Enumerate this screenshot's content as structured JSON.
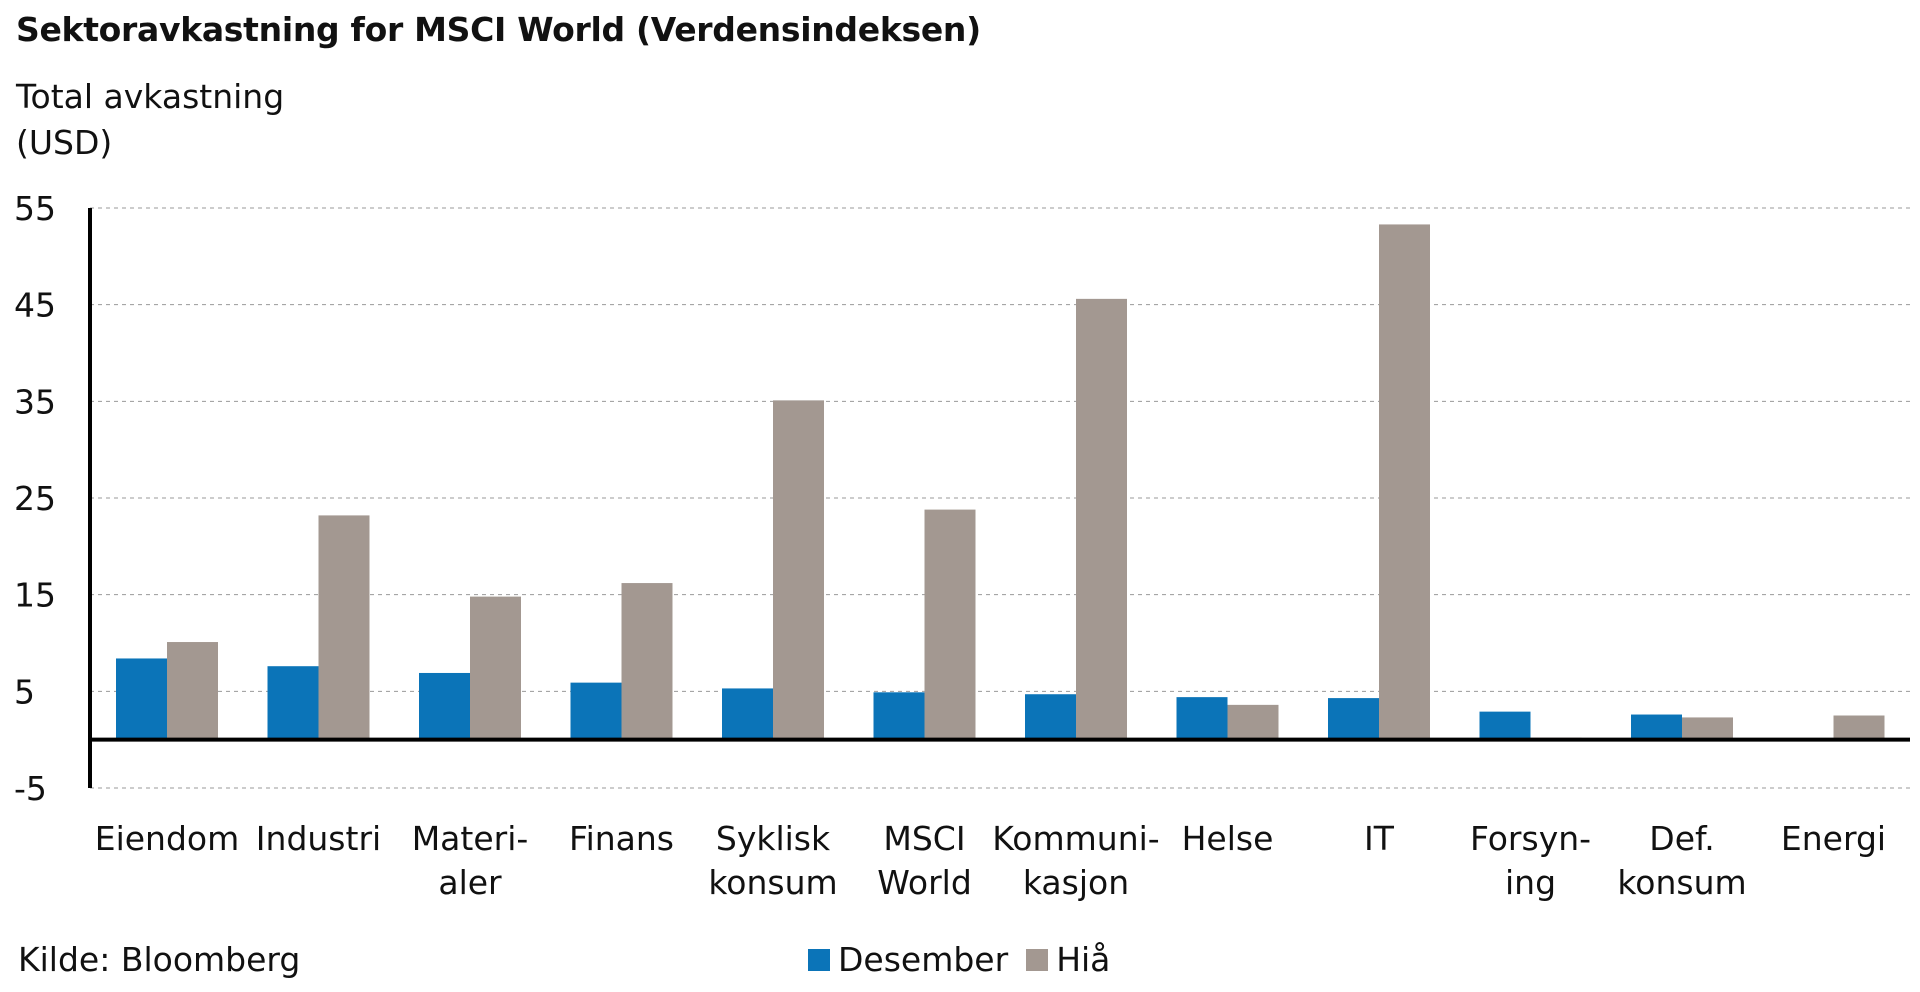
{
  "chart_data": {
    "type": "bar",
    "title": "Sektoravkastning for MSCI World (Verdensindeksen)",
    "ylabel": "Total avkastning (USD)",
    "ylim": [
      -5,
      55
    ],
    "yticks": [
      -5,
      5,
      15,
      25,
      35,
      45,
      55
    ],
    "grid": true,
    "legend_position": "bottom",
    "categories": [
      [
        "Eiendom"
      ],
      [
        "Industri"
      ],
      [
        "Materi-",
        "aler"
      ],
      [
        "Finans"
      ],
      [
        "Syklisk",
        "konsum"
      ],
      [
        "MSCI",
        "World"
      ],
      [
        "Kommuni-",
        "kasjon"
      ],
      [
        "Helse"
      ],
      [
        "IT"
      ],
      [
        "Forsyn-",
        "ing"
      ],
      [
        "Def.",
        "konsum"
      ],
      [
        "Energi"
      ]
    ],
    "series": [
      {
        "name": "Desember",
        "color": "#0b74b8",
        "values": [
          8.4,
          7.6,
          6.9,
          5.9,
          5.3,
          4.9,
          4.7,
          4.4,
          4.3,
          2.9,
          2.6,
          0.0
        ]
      },
      {
        "name": "Hiå",
        "color": "#a39891",
        "values": [
          10.1,
          23.2,
          14.8,
          16.2,
          35.1,
          23.8,
          45.6,
          3.6,
          53.3,
          0.2,
          2.3,
          2.5
        ]
      }
    ],
    "source": "Kilde: Bloomberg"
  }
}
